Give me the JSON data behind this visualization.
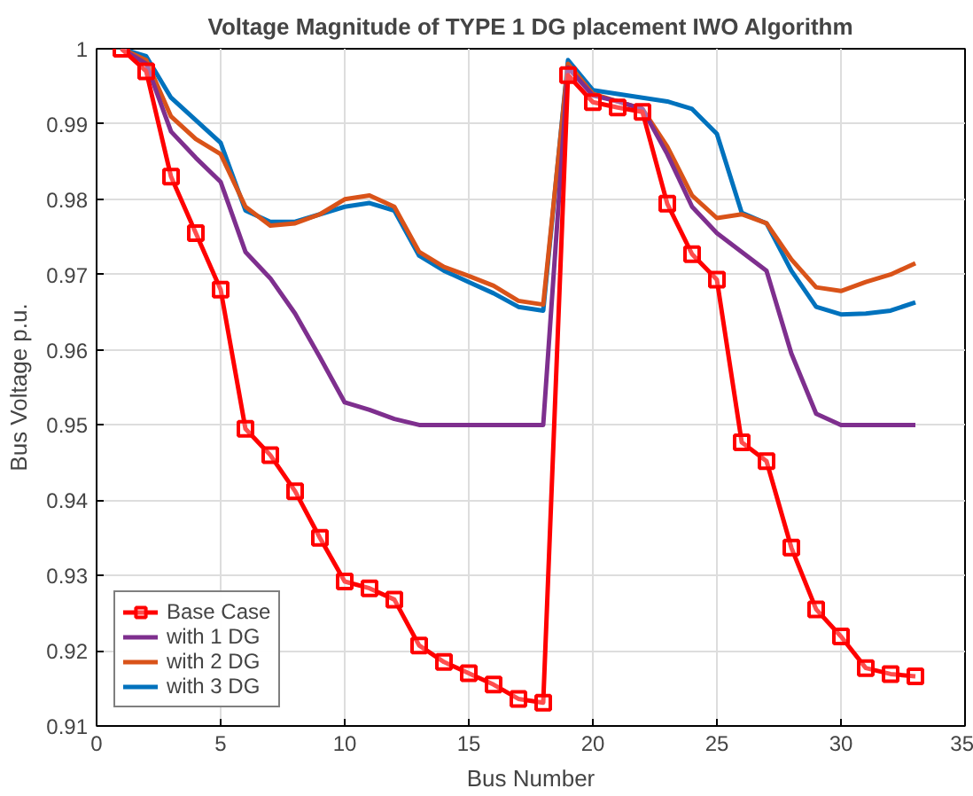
{
  "chart_data": {
    "type": "line",
    "title": "Voltage Magnitude of TYPE 1 DG placement IWO Algorithm",
    "xlabel": "Bus Number",
    "ylabel": "Bus Voltage p.u.",
    "x": [
      1,
      2,
      3,
      4,
      5,
      6,
      7,
      8,
      9,
      10,
      11,
      12,
      13,
      14,
      15,
      16,
      17,
      18,
      19,
      20,
      21,
      22,
      23,
      24,
      25,
      26,
      27,
      28,
      29,
      30,
      31,
      32,
      33
    ],
    "series": [
      {
        "name": "Base Case",
        "color": "#ff0000",
        "marker": "square",
        "values": [
          1.0,
          0.997,
          0.983,
          0.9755,
          0.968,
          0.9495,
          0.946,
          0.9412,
          0.935,
          0.9292,
          0.9283,
          0.9268,
          0.9207,
          0.9185,
          0.917,
          0.9155,
          0.9136,
          0.9131,
          0.9965,
          0.9929,
          0.9922,
          0.9916,
          0.9794,
          0.9727,
          0.9693,
          0.9477,
          0.9452,
          0.9337,
          0.9255,
          0.9219,
          0.9177,
          0.9169,
          0.9166
        ]
      },
      {
        "name": "with 1 DG",
        "color": "#7e2f8e",
        "marker": "none",
        "values": [
          1.0,
          0.998,
          0.989,
          0.9855,
          0.9823,
          0.973,
          0.9695,
          0.9648,
          0.959,
          0.953,
          0.952,
          0.9508,
          0.95,
          0.95,
          0.95,
          0.95,
          0.95,
          0.95,
          0.9975,
          0.9938,
          0.993,
          0.992,
          0.986,
          0.979,
          0.9755,
          0.973,
          0.9705,
          0.9595,
          0.9515,
          0.95,
          0.95,
          0.95,
          0.95
        ]
      },
      {
        "name": "with 2 DG",
        "color": "#d95319",
        "marker": "none",
        "values": [
          1.0,
          0.9985,
          0.991,
          0.988,
          0.986,
          0.979,
          0.9765,
          0.9768,
          0.978,
          0.98,
          0.9805,
          0.979,
          0.973,
          0.971,
          0.9698,
          0.9685,
          0.9665,
          0.966,
          0.998,
          0.994,
          0.993,
          0.992,
          0.987,
          0.9805,
          0.9775,
          0.978,
          0.9768,
          0.972,
          0.9683,
          0.9678,
          0.969,
          0.97,
          0.9715
        ]
      },
      {
        "name": "with 3 DG",
        "color": "#0072bd",
        "marker": "none",
        "values": [
          1.0,
          0.999,
          0.9935,
          0.9905,
          0.9875,
          0.9785,
          0.977,
          0.977,
          0.978,
          0.979,
          0.9795,
          0.9785,
          0.9725,
          0.9705,
          0.969,
          0.9675,
          0.9657,
          0.9652,
          0.9985,
          0.9945,
          0.994,
          0.9935,
          0.993,
          0.992,
          0.9887,
          0.9782,
          0.9768,
          0.9705,
          0.9657,
          0.9647,
          0.9648,
          0.9652,
          0.9663
        ]
      }
    ],
    "xlim": [
      0,
      35
    ],
    "xticks": [
      0,
      5,
      10,
      15,
      20,
      25,
      30,
      35
    ],
    "ylim": [
      0.91,
      1
    ],
    "yticks": [
      0.91,
      0.92,
      0.93,
      0.94,
      0.95,
      0.96,
      0.97,
      0.98,
      0.99,
      1
    ],
    "grid": true,
    "legend": "bottom left",
    "line_style": "solid"
  }
}
